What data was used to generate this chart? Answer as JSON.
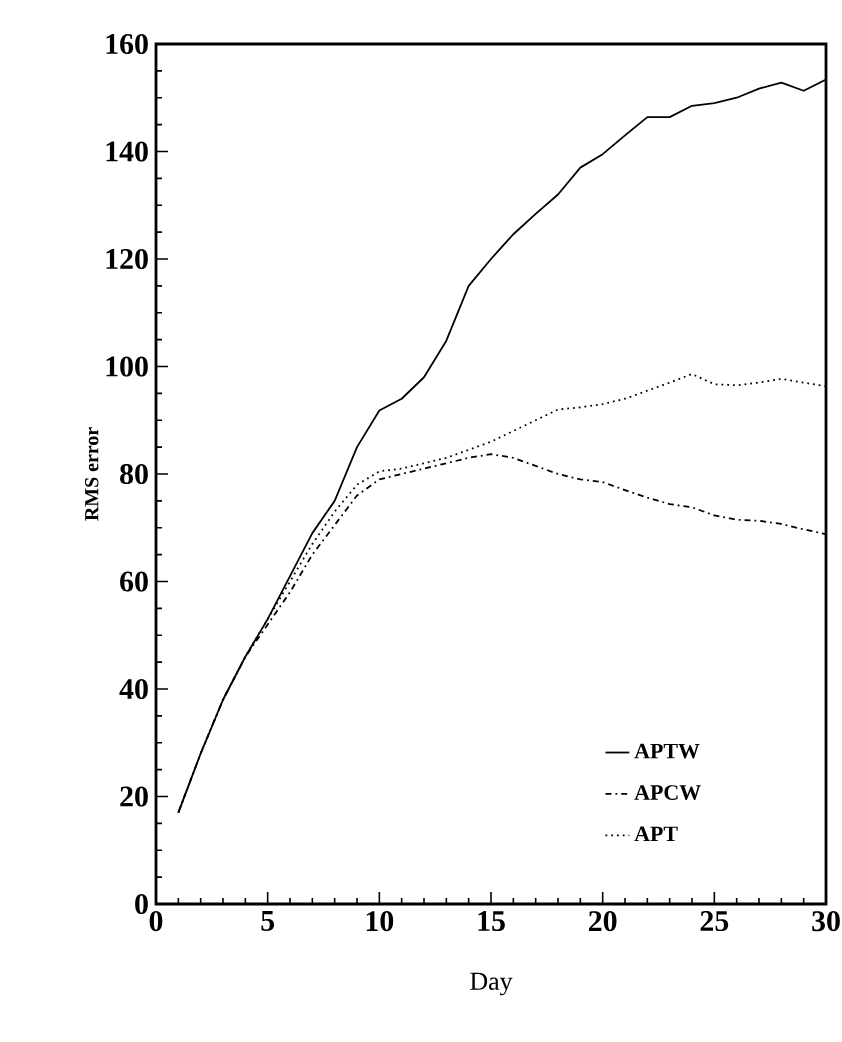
{
  "chart_data": {
    "type": "line",
    "xlabel": "Day",
    "ylabel": "RMS error",
    "x": [
      1,
      2,
      3,
      4,
      5,
      6,
      7,
      8,
      9,
      10,
      11,
      12,
      13,
      14,
      15,
      16,
      17,
      18,
      19,
      20,
      21,
      22,
      23,
      24,
      25,
      26,
      27,
      28,
      29,
      30
    ],
    "series": [
      {
        "name": "APTW",
        "color": "#000000",
        "line_style": "solid",
        "values": [
          17,
          28,
          38,
          46,
          53,
          61,
          69,
          75,
          85,
          91.8,
          94,
          98,
          104.8,
          115,
          120,
          124.6,
          128.4,
          132,
          137,
          139.5,
          143,
          146.4,
          146.4,
          148.5,
          149,
          150,
          151.7,
          152.8,
          151.3,
          153.4
        ]
      },
      {
        "name": "APCW",
        "color": "#000000",
        "line_style": "dashdot",
        "values": [
          17,
          28,
          38,
          46,
          52,
          58,
          65,
          70.5,
          76,
          79,
          80,
          81,
          82,
          83,
          83.7,
          83,
          81.5,
          80,
          79,
          78.5,
          77,
          75.6,
          74.4,
          73.8,
          72.3,
          71.5,
          71.3,
          70.7,
          69.7,
          68.8
        ]
      },
      {
        "name": "APT",
        "color": "#000000",
        "line_style": "dotted",
        "values": [
          17,
          28,
          38,
          46,
          53,
          60,
          67,
          73,
          78,
          80.5,
          81,
          82,
          83,
          84.5,
          86,
          88,
          90,
          92,
          92.4,
          93,
          94,
          95.5,
          97,
          98.6,
          96.7,
          96.5,
          97,
          97.7,
          97,
          96.3
        ]
      }
    ],
    "xlim": [
      0,
      30
    ],
    "ylim": [
      0,
      160
    ],
    "xticks": [
      0,
      5,
      10,
      15,
      20,
      25,
      30
    ],
    "yticks": [
      0,
      20,
      40,
      60,
      80,
      100,
      120,
      140,
      160
    ],
    "grid": false,
    "legend": "bottom right",
    "marker": "none"
  }
}
